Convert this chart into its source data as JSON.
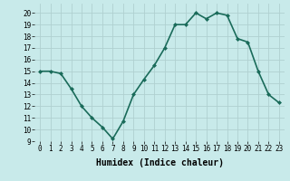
{
  "x": [
    0,
    1,
    2,
    3,
    4,
    5,
    6,
    7,
    8,
    9,
    10,
    11,
    12,
    13,
    14,
    15,
    16,
    17,
    18,
    19,
    20,
    21,
    22,
    23
  ],
  "y": [
    15,
    15,
    14.8,
    13.5,
    12,
    11,
    10.2,
    9.2,
    10.7,
    13,
    14.3,
    15.5,
    17,
    19,
    19,
    20,
    19.5,
    20,
    19.8,
    17.8,
    17.5,
    15,
    13,
    12.3
  ],
  "line_color": "#1a6b5a",
  "marker": "D",
  "marker_size": 2,
  "background_color": "#c8eaea",
  "grid_color": "#b0d0d0",
  "xlabel": "Humidex (Indice chaleur)",
  "xlim": [
    -0.5,
    23.5
  ],
  "ylim": [
    9,
    20.8
  ],
  "yticks": [
    9,
    10,
    11,
    12,
    13,
    14,
    15,
    16,
    17,
    18,
    19,
    20
  ],
  "xticks": [
    0,
    1,
    2,
    3,
    4,
    5,
    6,
    7,
    8,
    9,
    10,
    11,
    12,
    13,
    14,
    15,
    16,
    17,
    18,
    19,
    20,
    21,
    22,
    23
  ],
  "xtick_labels": [
    "0",
    "1",
    "2",
    "3",
    "4",
    "5",
    "6",
    "7",
    "8",
    "9",
    "10",
    "11",
    "12",
    "13",
    "14",
    "15",
    "16",
    "17",
    "18",
    "19",
    "20",
    "21",
    "22",
    "23"
  ],
  "ytick_labels": [
    "9",
    "10",
    "11",
    "12",
    "13",
    "14",
    "15",
    "16",
    "17",
    "18",
    "19",
    "20"
  ],
  "tick_fontsize": 5.5,
  "label_fontsize": 7,
  "linewidth": 1.2
}
